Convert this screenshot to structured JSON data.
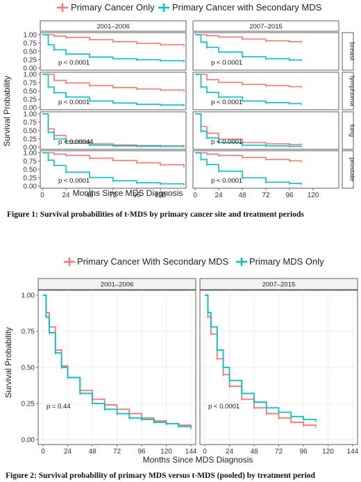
{
  "colors": {
    "primary": "#f8766d",
    "secondary": "#00bfc4",
    "strip_bg": "#ffffff",
    "panel_border": "#333333"
  },
  "figure1": {
    "legend": [
      "Primary Cancer Only",
      "Primary Cancer with Secondary MDS"
    ],
    "xlabel": "Months Since MDS Diagnosis",
    "ylabel": "Survival Probability",
    "caption": "Figure 1: Survival probabilities of t-MDS by primary cancer site and treatment periods"
  },
  "figure2": {
    "legend": [
      "Primary Cancer With Secondary MDS",
      "Primary MDS Only"
    ],
    "xlabel": "Months Since MDS Diagnosis",
    "ylabel": "Survival Probability",
    "caption": "Figure 2: Survival probability of primary MDS versus t-MDS (pooled) by treatment period"
  },
  "chart_data": [
    {
      "type": "line",
      "facet_columns": [
        "2001–2006",
        "2007–2015"
      ],
      "facet_rows": [
        "breast",
        "lymphoma",
        "lung",
        "prostate"
      ],
      "x_ticks": [
        0,
        24,
        48,
        72,
        96,
        120
      ],
      "y_ticks": [
        0.0,
        0.25,
        0.5,
        0.75,
        1.0
      ],
      "y_tick_labels": [
        "0.00",
        "0.25",
        "0.50",
        "0.75",
        "1.00"
      ],
      "xlim": [
        0,
        144
      ],
      "ylim": [
        0,
        1
      ],
      "xlabel": "Months Since MDS Diagnosis",
      "ylabel": "Survival Probability",
      "legend_position": "top",
      "panels": [
        {
          "row": "breast",
          "col": "2001–2006",
          "pvalue": "p < 0.0001",
          "series": [
            {
              "name": "Primary Cancer Only",
              "x": [
                0,
                12,
                24,
                48,
                72,
                96,
                120,
                144
              ],
              "y": [
                1.0,
                0.96,
                0.92,
                0.85,
                0.79,
                0.74,
                0.7,
                0.67
              ]
            },
            {
              "name": "Primary Cancer with Secondary MDS",
              "x": [
                0,
                6,
                12,
                24,
                48,
                72,
                96,
                120,
                144
              ],
              "y": [
                1.0,
                0.7,
                0.55,
                0.42,
                0.33,
                0.28,
                0.25,
                0.22,
                0.2
              ]
            }
          ]
        },
        {
          "row": "breast",
          "col": "2007–2015",
          "pvalue": "p < 0.0001",
          "series": [
            {
              "name": "Primary Cancer Only",
              "x": [
                0,
                12,
                24,
                48,
                72,
                96,
                108
              ],
              "y": [
                1.0,
                0.97,
                0.93,
                0.87,
                0.82,
                0.79,
                0.78
              ]
            },
            {
              "name": "Primary Cancer with Secondary MDS",
              "x": [
                0,
                6,
                12,
                24,
                48,
                72,
                96,
                108
              ],
              "y": [
                1.0,
                0.78,
                0.62,
                0.48,
                0.34,
                0.28,
                0.24,
                0.23
              ]
            }
          ]
        },
        {
          "row": "lymphoma",
          "col": "2001–2006",
          "pvalue": "p < 0.0001",
          "series": [
            {
              "name": "Primary Cancer Only",
              "x": [
                0,
                12,
                24,
                48,
                72,
                96,
                120,
                144
              ],
              "y": [
                1.0,
                0.82,
                0.74,
                0.66,
                0.6,
                0.56,
                0.53,
                0.5
              ]
            },
            {
              "name": "Primary Cancer with Secondary MDS",
              "x": [
                0,
                6,
                12,
                24,
                48,
                72,
                96,
                120,
                144
              ],
              "y": [
                1.0,
                0.62,
                0.45,
                0.32,
                0.2,
                0.14,
                0.1,
                0.08,
                0.07
              ]
            }
          ]
        },
        {
          "row": "lymphoma",
          "col": "2007–2015",
          "pvalue": "p < 0.0001",
          "series": [
            {
              "name": "Primary Cancer Only",
              "x": [
                0,
                12,
                24,
                48,
                72,
                96,
                108
              ],
              "y": [
                1.0,
                0.84,
                0.76,
                0.7,
                0.66,
                0.63,
                0.62
              ]
            },
            {
              "name": "Primary Cancer with Secondary MDS",
              "x": [
                0,
                6,
                12,
                24,
                48,
                72,
                96,
                108
              ],
              "y": [
                1.0,
                0.62,
                0.46,
                0.32,
                0.2,
                0.15,
                0.12,
                0.1
              ]
            }
          ]
        },
        {
          "row": "lung",
          "col": "2001–2006",
          "pvalue": "p < 0.00044",
          "series": [
            {
              "name": "Primary Cancer Only",
              "x": [
                0,
                6,
                12,
                24,
                48,
                72,
                96,
                120,
                144
              ],
              "y": [
                1.0,
                0.55,
                0.35,
                0.18,
                0.1,
                0.07,
                0.05,
                0.04,
                0.04
              ]
            },
            {
              "name": "Primary Cancer with Secondary MDS",
              "x": [
                0,
                6,
                12,
                24,
                48,
                72,
                96,
                120,
                144
              ],
              "y": [
                1.0,
                0.45,
                0.25,
                0.12,
                0.06,
                0.04,
                0.03,
                0.03,
                0.03
              ]
            }
          ]
        },
        {
          "row": "lung",
          "col": "2007–2015",
          "pvalue": "p < 0.0001",
          "series": [
            {
              "name": "Primary Cancer Only",
              "x": [
                0,
                6,
                12,
                24,
                48,
                72,
                96,
                108
              ],
              "y": [
                1.0,
                0.62,
                0.42,
                0.24,
                0.14,
                0.1,
                0.08,
                0.08
              ]
            },
            {
              "name": "Primary Cancer with Secondary MDS",
              "x": [
                0,
                6,
                12,
                24,
                48,
                72,
                96,
                108
              ],
              "y": [
                1.0,
                0.48,
                0.28,
                0.14,
                0.06,
                0.04,
                0.03,
                0.03
              ]
            }
          ]
        },
        {
          "row": "prostate",
          "col": "2001–2006",
          "pvalue": "p < 0.0001",
          "series": [
            {
              "name": "Primary Cancer Only",
              "x": [
                0,
                12,
                24,
                48,
                72,
                96,
                120,
                144
              ],
              "y": [
                1.0,
                0.96,
                0.92,
                0.84,
                0.77,
                0.7,
                0.64,
                0.58
              ]
            },
            {
              "name": "Primary Cancer with Secondary MDS",
              "x": [
                0,
                6,
                12,
                24,
                48,
                72,
                96,
                120,
                144
              ],
              "y": [
                1.0,
                0.78,
                0.62,
                0.42,
                0.26,
                0.16,
                0.1,
                0.07,
                0.05
              ]
            }
          ]
        },
        {
          "row": "prostate",
          "col": "2007–2015",
          "pvalue": "p < 0.0001",
          "series": [
            {
              "name": "Primary Cancer Only",
              "x": [
                0,
                12,
                24,
                48,
                72,
                96,
                108
              ],
              "y": [
                1.0,
                0.96,
                0.92,
                0.86,
                0.8,
                0.76,
                0.74
              ]
            },
            {
              "name": "Primary Cancer with Secondary MDS",
              "x": [
                0,
                6,
                12,
                24,
                48,
                72,
                96,
                108
              ],
              "y": [
                1.0,
                0.8,
                0.65,
                0.45,
                0.25,
                0.12,
                0.08,
                0.07
              ]
            }
          ]
        }
      ]
    },
    {
      "type": "line",
      "facet_columns": [
        "2001–2006",
        "2007–2015"
      ],
      "x_ticks": [
        0,
        24,
        48,
        72,
        96,
        120,
        144
      ],
      "y_ticks": [
        0.0,
        0.25,
        0.5,
        0.75,
        1.0
      ],
      "y_tick_labels": [
        "0.00",
        "0.25",
        "0.50",
        "0.75",
        "1.00"
      ],
      "xlim": [
        0,
        144
      ],
      "ylim": [
        0,
        1
      ],
      "xlabel": "Months Since MDS Diagnosis",
      "ylabel": "Survival Probability",
      "legend_position": "top",
      "grid": true,
      "panels": [
        {
          "col": "2001–2006",
          "pvalue": "p = 0.44",
          "series": [
            {
              "name": "Primary Cancer With Secondary MDS",
              "x": [
                0,
                3,
                6,
                12,
                18,
                24,
                36,
                48,
                60,
                72,
                84,
                96,
                108,
                120,
                132,
                144
              ],
              "y": [
                1.0,
                0.88,
                0.78,
                0.62,
                0.51,
                0.43,
                0.34,
                0.28,
                0.24,
                0.21,
                0.18,
                0.15,
                0.13,
                0.11,
                0.1,
                0.09
              ]
            },
            {
              "name": "Primary MDS Only",
              "x": [
                0,
                3,
                6,
                12,
                18,
                24,
                36,
                48,
                60,
                72,
                84,
                96,
                108,
                120,
                132,
                144
              ],
              "y": [
                1.0,
                0.85,
                0.74,
                0.6,
                0.5,
                0.43,
                0.32,
                0.25,
                0.21,
                0.18,
                0.15,
                0.14,
                0.12,
                0.11,
                0.09,
                0.08
              ]
            }
          ]
        },
        {
          "col": "2007–2015",
          "pvalue": "p < 0.0001",
          "series": [
            {
              "name": "Primary Cancer With Secondary MDS",
              "x": [
                0,
                3,
                6,
                12,
                18,
                24,
                36,
                48,
                60,
                72,
                84,
                96,
                108
              ],
              "y": [
                1.0,
                0.85,
                0.73,
                0.56,
                0.45,
                0.37,
                0.28,
                0.22,
                0.18,
                0.15,
                0.12,
                0.1,
                0.09
              ]
            },
            {
              "name": "Primary MDS Only",
              "x": [
                0,
                3,
                6,
                12,
                18,
                24,
                36,
                48,
                60,
                72,
                84,
                96,
                108
              ],
              "y": [
                1.0,
                0.88,
                0.78,
                0.62,
                0.5,
                0.41,
                0.32,
                0.26,
                0.22,
                0.19,
                0.16,
                0.14,
                0.13
              ]
            }
          ]
        }
      ]
    }
  ]
}
